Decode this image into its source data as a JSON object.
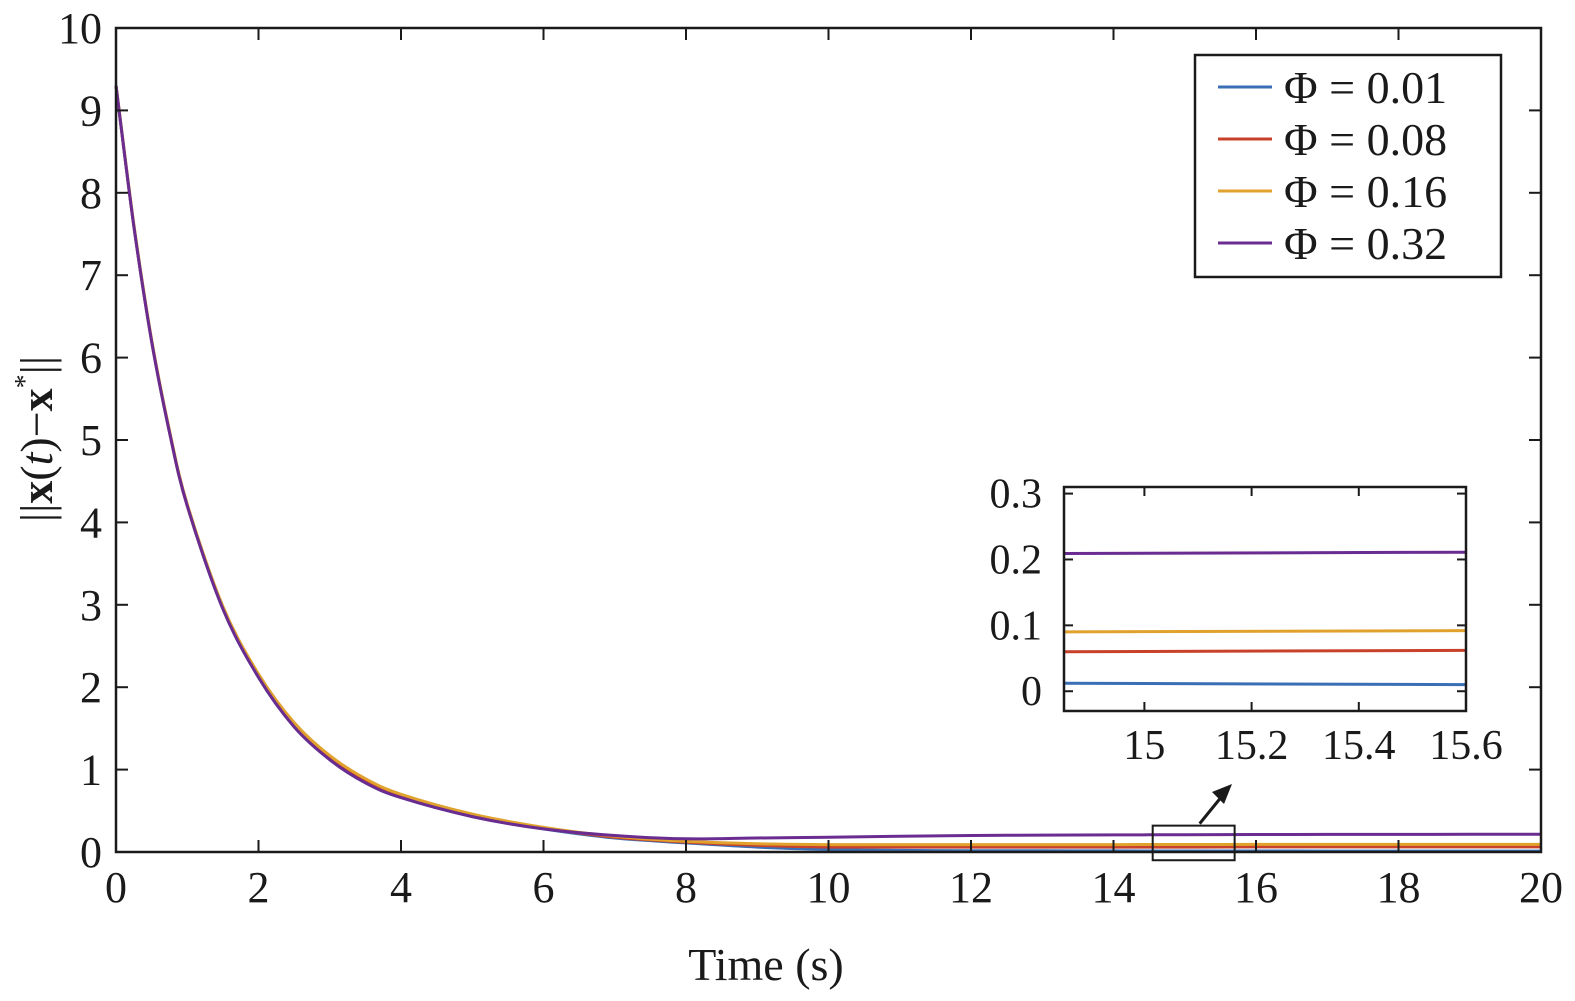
{
  "chart_data": {
    "type": "line",
    "xlabel": "Time (s)",
    "ylabel": "||x(t)−x*||",
    "ylabel_parts": {
      "open": "||",
      "x1": "x",
      "lp": "(",
      "t": "t",
      "rp": ")",
      "minus": "−",
      "x2": "x",
      "star": "*",
      "close": "||"
    },
    "xlim": [
      0,
      20
    ],
    "ylim": [
      0,
      10
    ],
    "xticks": [
      0,
      2,
      4,
      6,
      8,
      10,
      12,
      14,
      16,
      18,
      20
    ],
    "xtick_labels": [
      "0",
      "2",
      "4",
      "6",
      "8",
      "10",
      "12",
      "14",
      "16",
      "18",
      "20"
    ],
    "yticks": [
      0,
      1,
      2,
      3,
      4,
      5,
      6,
      7,
      8,
      9,
      10
    ],
    "ytick_labels": [
      "0",
      "1",
      "2",
      "3",
      "4",
      "5",
      "6",
      "7",
      "8",
      "9",
      "10"
    ],
    "grid": false,
    "legend_position": "top-right",
    "x": [
      0,
      0.25,
      0.5,
      0.75,
      1,
      1.5,
      2,
      2.5,
      3,
      3.5,
      4,
      5,
      6,
      7,
      8,
      9,
      10,
      11,
      12,
      13,
      14,
      15,
      16,
      17,
      18,
      19,
      20
    ],
    "series": [
      {
        "name": "Φ = 0.01",
        "color": "#3a6fb5",
        "values": [
          9.3,
          7.6,
          6.2,
          5.1,
          4.2,
          2.95,
          2.12,
          1.52,
          1.12,
          0.84,
          0.66,
          0.43,
          0.28,
          0.17,
          0.11,
          0.06,
          0.03,
          0.02,
          0.015,
          0.014,
          0.013,
          0.012,
          0.012,
          0.011,
          0.011,
          0.011,
          0.011
        ]
      },
      {
        "name": "Φ = 0.08",
        "color": "#c8412a",
        "values": [
          9.3,
          7.6,
          6.2,
          5.1,
          4.2,
          2.96,
          2.14,
          1.54,
          1.14,
          0.86,
          0.68,
          0.44,
          0.29,
          0.18,
          0.12,
          0.08,
          0.06,
          0.06,
          0.06,
          0.06,
          0.06,
          0.06,
          0.062,
          0.062,
          0.062,
          0.062,
          0.062
        ]
      },
      {
        "name": "Φ = 0.16",
        "color": "#e0a22c",
        "values": [
          9.3,
          7.62,
          6.22,
          5.12,
          4.22,
          2.98,
          2.16,
          1.57,
          1.17,
          0.89,
          0.7,
          0.46,
          0.3,
          0.19,
          0.13,
          0.1,
          0.09,
          0.09,
          0.09,
          0.09,
          0.09,
          0.091,
          0.092,
          0.092,
          0.092,
          0.092,
          0.092
        ]
      },
      {
        "name": "Φ = 0.32",
        "color": "#6a2c90",
        "values": [
          9.3,
          7.6,
          6.2,
          5.1,
          4.2,
          2.95,
          2.12,
          1.52,
          1.12,
          0.84,
          0.66,
          0.43,
          0.28,
          0.2,
          0.16,
          0.17,
          0.18,
          0.19,
          0.2,
          0.205,
          0.208,
          0.21,
          0.212,
          0.213,
          0.214,
          0.215,
          0.215
        ]
      }
    ],
    "inset": {
      "xlim": [
        14.85,
        15.6
      ],
      "ylim": [
        -0.03,
        0.31
      ],
      "xticks": [
        15,
        15.2,
        15.4,
        15.6
      ],
      "xtick_labels": [
        "15",
        "15.2",
        "15.4",
        "15.6"
      ],
      "yticks": [
        0,
        0.1,
        0.2,
        0.3
      ],
      "ytick_labels": [
        "0",
        "0.1",
        "0.2",
        "0.3"
      ],
      "x": [
        14.85,
        15.6
      ],
      "series_values": [
        [
          0.012,
          0.01
        ],
        [
          0.06,
          0.062
        ],
        [
          0.09,
          0.092
        ],
        [
          0.209,
          0.211
        ]
      ],
      "zoom_region": {
        "x": [
          14.55,
          15.7
        ],
        "y": [
          -0.1,
          0.32
        ]
      }
    }
  }
}
